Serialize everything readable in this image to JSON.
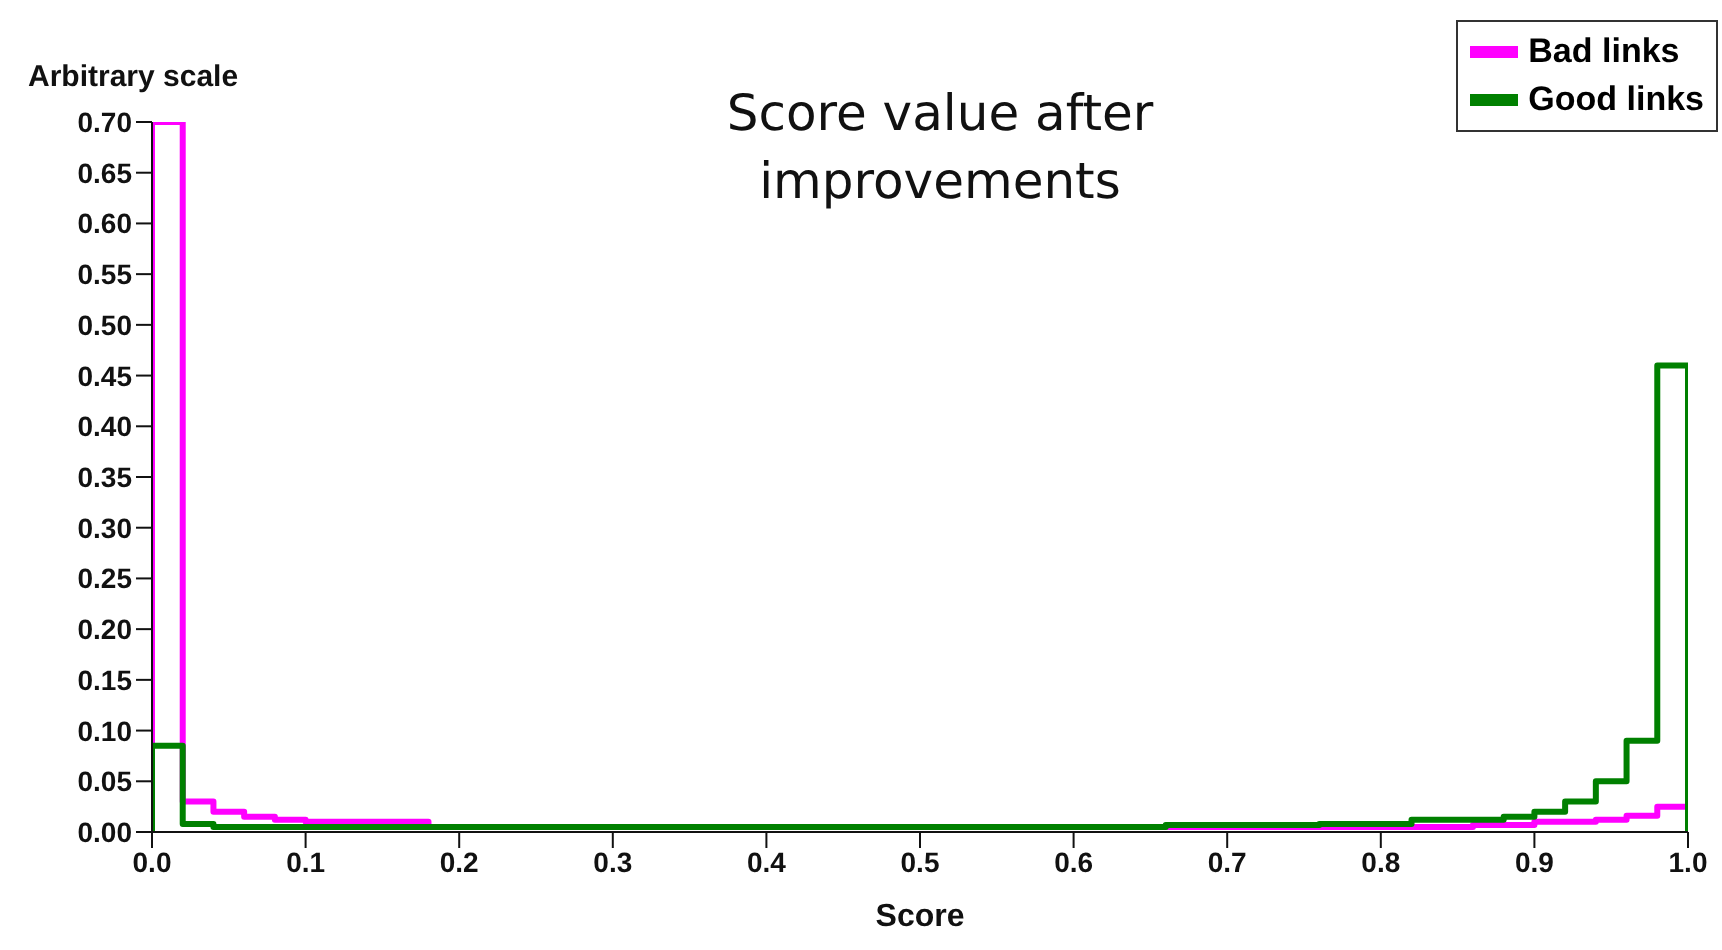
{
  "chart_data": {
    "type": "histogram",
    "title": "Score value after improvements",
    "xlabel": "Score",
    "ylabel": "Arbitrary scale",
    "bins": [
      0,
      0.02,
      0.04,
      0.06,
      0.08,
      0.1,
      0.12,
      0.14,
      0.16,
      0.18,
      0.2,
      0.22,
      0.24,
      0.26,
      0.28,
      0.3,
      0.32,
      0.34,
      0.36,
      0.38,
      0.4,
      0.42,
      0.44,
      0.46,
      0.48,
      0.5,
      0.52,
      0.54,
      0.56,
      0.58,
      0.6,
      0.62,
      0.64,
      0.66,
      0.68,
      0.7,
      0.72,
      0.74,
      0.76,
      0.78,
      0.8,
      0.82,
      0.84,
      0.86,
      0.88,
      0.9,
      0.92,
      0.94,
      0.96,
      0.98,
      1
    ],
    "series": [
      {
        "name": "Bad links",
        "color": "#ff00ff",
        "values": [
          0.7,
          0.03,
          0.02,
          0.015,
          0.012,
          0.01,
          0.01,
          0.01,
          0.01,
          0.005,
          0.005,
          0.005,
          0.005,
          0.005,
          0.005,
          0.005,
          0.005,
          0.005,
          0.005,
          0.005,
          0.005,
          0.005,
          0.005,
          0.005,
          0.005,
          0.005,
          0.005,
          0.005,
          0.005,
          0.005,
          0.005,
          0.005,
          0.005,
          0.005,
          0.005,
          0.005,
          0.005,
          0.005,
          0.005,
          0.005,
          0.005,
          0.005,
          0.005,
          0.007,
          0.007,
          0.01,
          0.01,
          0.012,
          0.016,
          0.025
        ]
      },
      {
        "name": "Good links",
        "color": "#008000",
        "values": [
          0.085,
          0.008,
          0.005,
          0.005,
          0.005,
          0.005,
          0.005,
          0.005,
          0.005,
          0.005,
          0.005,
          0.005,
          0.005,
          0.005,
          0.005,
          0.005,
          0.005,
          0.005,
          0.005,
          0.005,
          0.005,
          0.005,
          0.005,
          0.005,
          0.005,
          0.005,
          0.005,
          0.005,
          0.005,
          0.005,
          0.005,
          0.005,
          0.005,
          0.007,
          0.007,
          0.007,
          0.007,
          0.007,
          0.008,
          0.008,
          0.008,
          0.012,
          0.012,
          0.012,
          0.015,
          0.02,
          0.03,
          0.05,
          0.09,
          0.46
        ]
      }
    ],
    "xlim": [
      0,
      1
    ],
    "xticks": [
      {
        "value": 0,
        "label": "0.0"
      },
      0.1,
      0.2,
      0.3,
      0.4,
      0.5,
      0.6,
      0.7,
      0.8,
      0.9,
      {
        "value": 1,
        "label": "1.0"
      }
    ],
    "ylim": [
      0,
      0.7
    ],
    "yticks": [
      {
        "value": 0,
        "label": "0.00"
      },
      0.05,
      {
        "value": 0.1,
        "label": "0.10"
      },
      0.15,
      {
        "value": 0.2,
        "label": "0.20"
      },
      0.25,
      {
        "value": 0.3,
        "label": "0.30"
      },
      0.35,
      {
        "value": 0.4,
        "label": "0.40"
      },
      0.45,
      {
        "value": 0.5,
        "label": "0.50"
      },
      0.55,
      {
        "value": 0.6,
        "label": "0.60"
      },
      0.65,
      {
        "value": 0.7,
        "label": "0.70"
      }
    ],
    "grid": false,
    "legend": "top right"
  }
}
